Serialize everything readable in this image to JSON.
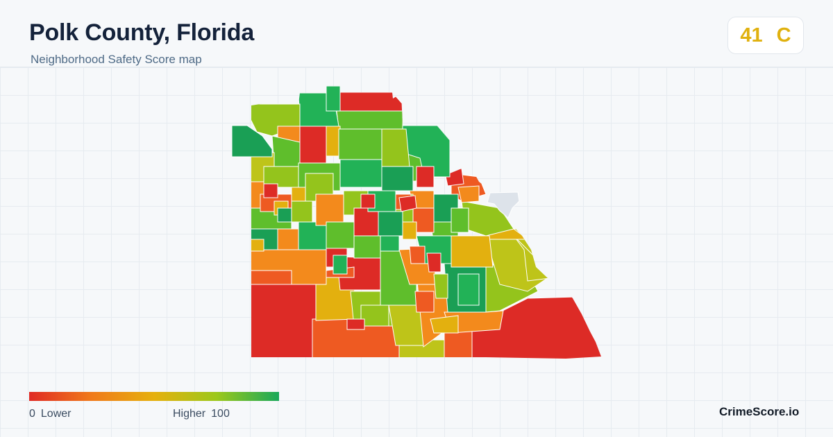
{
  "header": {
    "title": "Polk County, Florida",
    "subtitle": "Neighborhood Safety Score map"
  },
  "score": {
    "value": "41",
    "grade": "C",
    "color": "#e0b10f"
  },
  "legend": {
    "min_value": "0",
    "min_label": "Lower",
    "max_label": "Higher",
    "max_value": "100",
    "colors": [
      "#e02a24",
      "#f07a1a",
      "#e6b00d",
      "#9cc81a",
      "#19a85a"
    ]
  },
  "map": {
    "region": "Polk County, Florida",
    "color_scale": [
      "#dd2b26",
      "#ee5a22",
      "#f38a1c",
      "#e3b00f",
      "#bec419",
      "#94c41c",
      "#5fbe2c",
      "#22b257",
      "#1a9f55"
    ],
    "no_data_color": "#dde3ea"
  },
  "brand": "CrimeScore.io"
}
